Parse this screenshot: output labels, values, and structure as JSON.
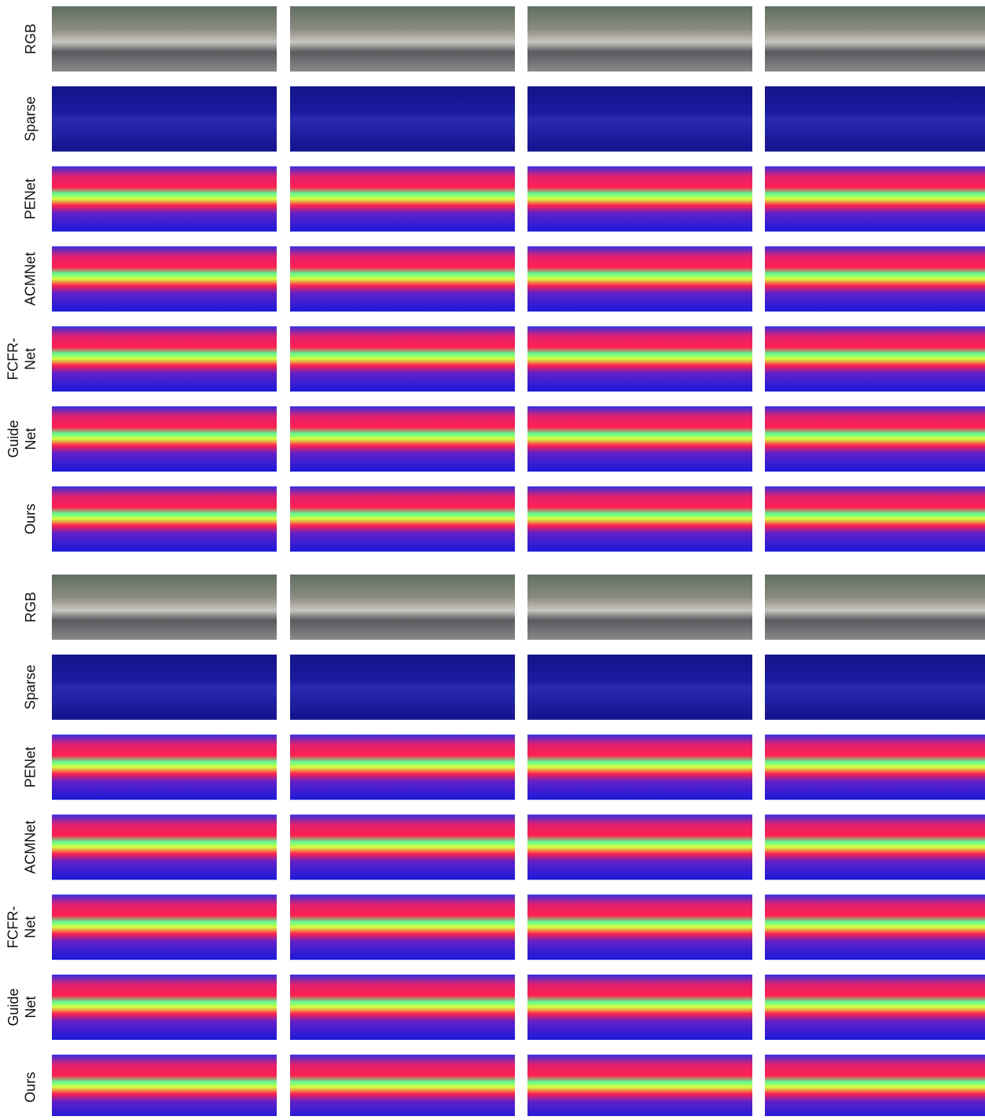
{
  "figure": {
    "blocks": [
      {
        "rows": [
          {
            "label": [
              "RGB"
            ]
          },
          {
            "label": [
              "Sparse"
            ]
          },
          {
            "label": [
              "PENet"
            ]
          },
          {
            "label": [
              "ACMNet"
            ]
          },
          {
            "label": [
              "FCFR-",
              "Net"
            ]
          },
          {
            "label": [
              "Guide",
              "Net"
            ]
          },
          {
            "label": [
              "Ours"
            ]
          }
        ]
      },
      {
        "rows": [
          {
            "label": [
              "RGB"
            ]
          },
          {
            "label": [
              "Sparse"
            ]
          },
          {
            "label": [
              "PENet"
            ]
          },
          {
            "label": [
              "ACMNet"
            ]
          },
          {
            "label": [
              "FCFR-",
              "Net"
            ]
          },
          {
            "label": [
              "Guide",
              "Net"
            ]
          },
          {
            "label": [
              "Ours"
            ]
          }
        ]
      }
    ]
  }
}
